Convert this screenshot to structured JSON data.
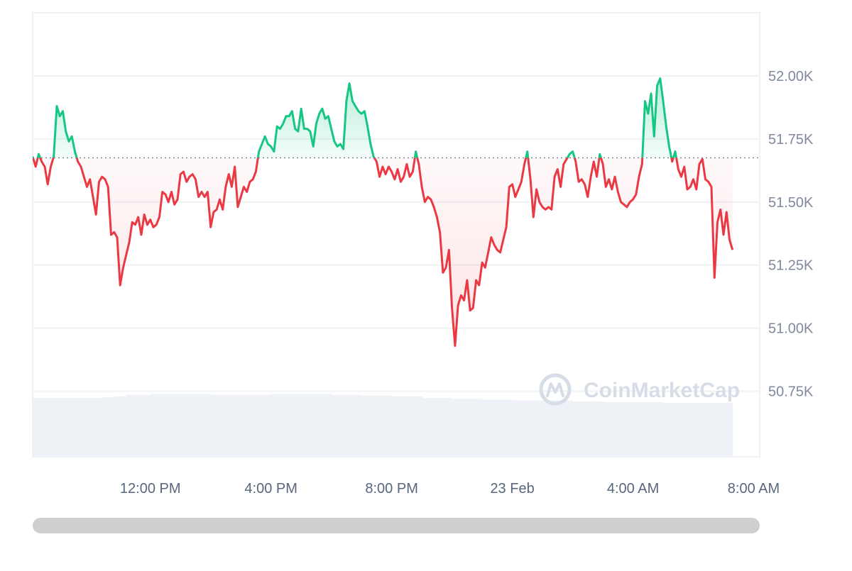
{
  "watermark": {
    "text": "CoinMarketCap",
    "logo": "coinmarketcap-logo-icon"
  },
  "colors": {
    "up": "#16c784",
    "down": "#ea3943",
    "up_fill": "#16c784",
    "down_fill": "#ea3943",
    "grid": "#eff2f5",
    "baseline": "#808a9d",
    "volume": "#eef1f5",
    "scrollbar": "#cfcfcf"
  },
  "chart_data": {
    "type": "line",
    "xlabel": "",
    "ylabel": "",
    "x_unit": "hours since the first visible tick label (12:00 PM, 22 Feb)",
    "x_ticks": [
      {
        "x": 0,
        "label": "12:00 PM"
      },
      {
        "x": 4,
        "label": "4:00 PM"
      },
      {
        "x": 8,
        "label": "8:00 PM"
      },
      {
        "x": 12,
        "label": "23 Feb"
      },
      {
        "x": 16,
        "label": "4:00 AM"
      },
      {
        "x": 20,
        "label": "8:00 AM"
      }
    ],
    "y_ticks": [
      {
        "value": 50750,
        "label": "50.75K"
      },
      {
        "value": 51000,
        "label": "51.00K"
      },
      {
        "value": 51250,
        "label": "51.25K"
      },
      {
        "value": 51500,
        "label": "51.50K"
      },
      {
        "value": 51750,
        "label": "51.75K"
      },
      {
        "value": 52000,
        "label": "52.00K"
      }
    ],
    "ylim": [
      50490,
      52250
    ],
    "xlim": [
      -3.9,
      20.2
    ],
    "baseline": 51675,
    "grid": true,
    "series": [
      {
        "values": [
          [
            -3.9,
            51680
          ],
          [
            -3.8,
            51640
          ],
          [
            -3.7,
            51690
          ],
          [
            -3.6,
            51660
          ],
          [
            -3.5,
            51640
          ],
          [
            -3.4,
            51570
          ],
          [
            -3.3,
            51640
          ],
          [
            -3.2,
            51680
          ],
          [
            -3.1,
            51880
          ],
          [
            -3.0,
            51840
          ],
          [
            -2.9,
            51860
          ],
          [
            -2.8,
            51780
          ],
          [
            -2.7,
            51740
          ],
          [
            -2.6,
            51760
          ],
          [
            -2.5,
            51700
          ],
          [
            -2.4,
            51660
          ],
          [
            -2.3,
            51640
          ],
          [
            -2.2,
            51600
          ],
          [
            -2.1,
            51560
          ],
          [
            -2.0,
            51590
          ],
          [
            -1.9,
            51520
          ],
          [
            -1.8,
            51450
          ],
          [
            -1.7,
            51580
          ],
          [
            -1.6,
            51600
          ],
          [
            -1.5,
            51590
          ],
          [
            -1.4,
            51560
          ],
          [
            -1.3,
            51370
          ],
          [
            -1.2,
            51380
          ],
          [
            -1.1,
            51360
          ],
          [
            -1.0,
            51170
          ],
          [
            -0.9,
            51240
          ],
          [
            -0.8,
            51290
          ],
          [
            -0.7,
            51340
          ],
          [
            -0.6,
            51420
          ],
          [
            -0.5,
            51410
          ],
          [
            -0.4,
            51440
          ],
          [
            -0.3,
            51370
          ],
          [
            -0.2,
            51450
          ],
          [
            -0.1,
            51410
          ],
          [
            0.0,
            51430
          ],
          [
            0.1,
            51400
          ],
          [
            0.2,
            51410
          ],
          [
            0.3,
            51440
          ],
          [
            0.4,
            51540
          ],
          [
            0.5,
            51530
          ],
          [
            0.6,
            51500
          ],
          [
            0.7,
            51540
          ],
          [
            0.8,
            51490
          ],
          [
            0.9,
            51510
          ],
          [
            1.0,
            51610
          ],
          [
            1.1,
            51620
          ],
          [
            1.2,
            51580
          ],
          [
            1.3,
            51600
          ],
          [
            1.4,
            51610
          ],
          [
            1.5,
            51590
          ],
          [
            1.6,
            51520
          ],
          [
            1.7,
            51540
          ],
          [
            1.8,
            51520
          ],
          [
            1.9,
            51540
          ],
          [
            2.0,
            51400
          ],
          [
            2.1,
            51460
          ],
          [
            2.2,
            51470
          ],
          [
            2.3,
            51510
          ],
          [
            2.4,
            51470
          ],
          [
            2.5,
            51560
          ],
          [
            2.6,
            51610
          ],
          [
            2.7,
            51560
          ],
          [
            2.8,
            51640
          ],
          [
            2.9,
            51480
          ],
          [
            3.0,
            51520
          ],
          [
            3.1,
            51560
          ],
          [
            3.2,
            51540
          ],
          [
            3.3,
            51580
          ],
          [
            3.4,
            51590
          ],
          [
            3.5,
            51620
          ],
          [
            3.6,
            51700
          ],
          [
            3.7,
            51730
          ],
          [
            3.8,
            51760
          ],
          [
            3.9,
            51730
          ],
          [
            4.0,
            51720
          ],
          [
            4.1,
            51700
          ],
          [
            4.2,
            51800
          ],
          [
            4.3,
            51790
          ],
          [
            4.4,
            51810
          ],
          [
            4.5,
            51840
          ],
          [
            4.6,
            51840
          ],
          [
            4.7,
            51860
          ],
          [
            4.8,
            51790
          ],
          [
            4.9,
            51780
          ],
          [
            5.0,
            51870
          ],
          [
            5.1,
            51790
          ],
          [
            5.2,
            51790
          ],
          [
            5.3,
            51780
          ],
          [
            5.4,
            51720
          ],
          [
            5.5,
            51810
          ],
          [
            5.6,
            51850
          ],
          [
            5.7,
            51870
          ],
          [
            5.8,
            51830
          ],
          [
            5.9,
            51840
          ],
          [
            6.0,
            51790
          ],
          [
            6.1,
            51740
          ],
          [
            6.2,
            51720
          ],
          [
            6.3,
            51730
          ],
          [
            6.4,
            51710
          ],
          [
            6.5,
            51900
          ],
          [
            6.6,
            51970
          ],
          [
            6.7,
            51900
          ],
          [
            6.8,
            51880
          ],
          [
            6.9,
            51860
          ],
          [
            7.0,
            51850
          ],
          [
            7.1,
            51860
          ],
          [
            7.2,
            51800
          ],
          [
            7.3,
            51730
          ],
          [
            7.4,
            51680
          ],
          [
            7.5,
            51660
          ],
          [
            7.6,
            51600
          ],
          [
            7.7,
            51640
          ],
          [
            7.8,
            51610
          ],
          [
            7.9,
            51640
          ],
          [
            8.0,
            51620
          ],
          [
            8.1,
            51590
          ],
          [
            8.2,
            51630
          ],
          [
            8.3,
            51580
          ],
          [
            8.4,
            51600
          ],
          [
            8.5,
            51650
          ],
          [
            8.6,
            51600
          ],
          [
            8.7,
            51620
          ],
          [
            8.8,
            51700
          ],
          [
            8.9,
            51650
          ],
          [
            9.0,
            51560
          ],
          [
            9.1,
            51500
          ],
          [
            9.2,
            51520
          ],
          [
            9.3,
            51510
          ],
          [
            9.4,
            51480
          ],
          [
            9.5,
            51440
          ],
          [
            9.6,
            51380
          ],
          [
            9.7,
            51220
          ],
          [
            9.8,
            51240
          ],
          [
            9.9,
            51310
          ],
          [
            10.0,
            51080
          ],
          [
            10.1,
            50930
          ],
          [
            10.2,
            51090
          ],
          [
            10.3,
            51130
          ],
          [
            10.4,
            51110
          ],
          [
            10.5,
            51190
          ],
          [
            10.6,
            51070
          ],
          [
            10.7,
            51080
          ],
          [
            10.8,
            51190
          ],
          [
            10.9,
            51170
          ],
          [
            11.0,
            51260
          ],
          [
            11.1,
            51240
          ],
          [
            11.2,
            51300
          ],
          [
            11.3,
            51360
          ],
          [
            11.4,
            51330
          ],
          [
            11.5,
            51310
          ],
          [
            11.6,
            51300
          ],
          [
            11.7,
            51350
          ],
          [
            11.8,
            51400
          ],
          [
            11.9,
            51560
          ],
          [
            12.0,
            51570
          ],
          [
            12.1,
            51520
          ],
          [
            12.2,
            51550
          ],
          [
            12.3,
            51580
          ],
          [
            12.4,
            51650
          ],
          [
            12.5,
            51700
          ],
          [
            12.6,
            51590
          ],
          [
            12.7,
            51440
          ],
          [
            12.8,
            51550
          ],
          [
            12.9,
            51500
          ],
          [
            13.0,
            51480
          ],
          [
            13.1,
            51470
          ],
          [
            13.2,
            51480
          ],
          [
            13.3,
            51470
          ],
          [
            13.4,
            51600
          ],
          [
            13.5,
            51630
          ],
          [
            13.6,
            51560
          ],
          [
            13.7,
            51650
          ],
          [
            13.8,
            51670
          ],
          [
            13.9,
            51690
          ],
          [
            14.0,
            51700
          ],
          [
            14.1,
            51660
          ],
          [
            14.2,
            51580
          ],
          [
            14.3,
            51590
          ],
          [
            14.4,
            51570
          ],
          [
            14.5,
            51520
          ],
          [
            14.6,
            51600
          ],
          [
            14.7,
            51660
          ],
          [
            14.8,
            51600
          ],
          [
            14.9,
            51690
          ],
          [
            15.0,
            51650
          ],
          [
            15.1,
            51560
          ],
          [
            15.2,
            51590
          ],
          [
            15.3,
            51550
          ],
          [
            15.4,
            51600
          ],
          [
            15.5,
            51540
          ],
          [
            15.6,
            51500
          ],
          [
            15.7,
            51490
          ],
          [
            15.8,
            51480
          ],
          [
            15.9,
            51500
          ],
          [
            16.0,
            51510
          ],
          [
            16.1,
            51530
          ],
          [
            16.2,
            51600
          ],
          [
            16.3,
            51650
          ],
          [
            16.4,
            51900
          ],
          [
            16.5,
            51850
          ],
          [
            16.6,
            51930
          ],
          [
            16.7,
            51760
          ],
          [
            16.8,
            51960
          ],
          [
            16.9,
            51990
          ],
          [
            17.0,
            51900
          ],
          [
            17.1,
            51800
          ],
          [
            17.2,
            51720
          ],
          [
            17.3,
            51660
          ],
          [
            17.4,
            51700
          ],
          [
            17.5,
            51630
          ],
          [
            17.6,
            51600
          ],
          [
            17.7,
            51640
          ],
          [
            17.8,
            51550
          ],
          [
            17.9,
            51560
          ],
          [
            18.0,
            51590
          ],
          [
            18.1,
            51550
          ],
          [
            18.2,
            51650
          ],
          [
            18.3,
            51670
          ],
          [
            18.4,
            51590
          ],
          [
            18.5,
            51580
          ],
          [
            18.6,
            51560
          ],
          [
            18.7,
            51200
          ],
          [
            18.8,
            51420
          ],
          [
            18.9,
            51470
          ],
          [
            19.0,
            51370
          ],
          [
            19.1,
            51460
          ],
          [
            19.2,
            51350
          ],
          [
            19.3,
            51310
          ]
        ]
      }
    ],
    "volume": {
      "note": "relative volume level (0-1) of background bars, no axis printed",
      "levels": [
        [
          -3.9,
          0.72
        ],
        [
          -2.0,
          0.72
        ],
        [
          -1.6,
          0.73
        ],
        [
          -1.2,
          0.74
        ],
        [
          -0.8,
          0.76
        ],
        [
          0.0,
          0.77
        ],
        [
          1.0,
          0.77
        ],
        [
          2.0,
          0.76
        ],
        [
          3.0,
          0.76
        ],
        [
          4.0,
          0.77
        ],
        [
          5.0,
          0.77
        ],
        [
          6.0,
          0.76
        ],
        [
          7.0,
          0.75
        ],
        [
          8.0,
          0.74
        ],
        [
          9.0,
          0.72
        ],
        [
          10.0,
          0.71
        ],
        [
          11.0,
          0.7
        ],
        [
          12.0,
          0.69
        ],
        [
          13.0,
          0.69
        ],
        [
          14.0,
          0.68
        ],
        [
          15.0,
          0.67
        ],
        [
          16.0,
          0.67
        ],
        [
          17.0,
          0.66
        ],
        [
          18.0,
          0.66
        ],
        [
          19.3,
          0.66
        ]
      ]
    }
  }
}
